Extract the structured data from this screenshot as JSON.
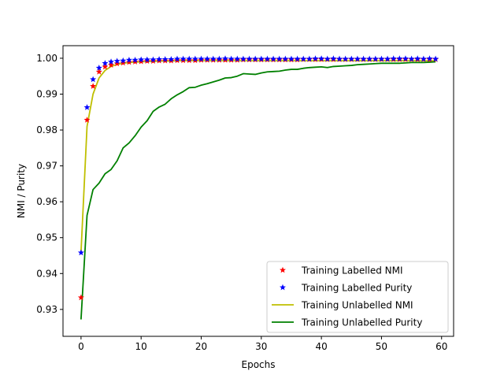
{
  "chart_data": {
    "type": "line",
    "xlabel": "Epochs",
    "ylabel": "NMI / Purity",
    "xlim": [
      -3,
      62
    ],
    "ylim": [
      0.9225,
      1.0035
    ],
    "xticks": [
      0,
      10,
      20,
      30,
      40,
      50,
      60
    ],
    "yticks": [
      0.93,
      0.94,
      0.95,
      0.96,
      0.97,
      0.98,
      0.99,
      1.0
    ],
    "ytick_labels": [
      "0.93",
      "0.94",
      "0.95",
      "0.96",
      "0.97",
      "0.98",
      "0.99",
      "1.00"
    ],
    "grid": false,
    "legend_position": "lower-right",
    "series": [
      {
        "name": "Training Labelled NMI",
        "style": "markers",
        "marker": "star",
        "color": "#ff0000",
        "x": [
          0,
          1,
          2,
          3,
          4,
          5,
          6,
          7,
          8,
          9,
          10,
          11,
          12,
          13,
          14,
          15,
          16,
          17,
          18,
          19,
          20,
          21,
          22,
          23,
          24,
          25,
          26,
          27,
          28,
          29,
          30,
          31,
          32,
          33,
          34,
          35,
          36,
          37,
          38,
          39,
          40,
          41,
          42,
          43,
          44,
          45,
          46,
          47,
          48,
          49,
          50,
          51,
          52,
          53,
          54,
          55,
          56,
          57,
          58,
          59
        ],
        "y": [
          0.9333,
          0.9828,
          0.9922,
          0.9962,
          0.9976,
          0.9981,
          0.9985,
          0.9987,
          0.9989,
          0.999,
          0.9991,
          0.9992,
          0.9992,
          0.9993,
          0.9993,
          0.9993,
          0.9994,
          0.9994,
          0.9994,
          0.9994,
          0.9995,
          0.9995,
          0.9995,
          0.9995,
          0.9995,
          0.9995,
          0.9995,
          0.9996,
          0.9996,
          0.9996,
          0.9996,
          0.9996,
          0.9996,
          0.9996,
          0.9996,
          0.9996,
          0.9996,
          0.9997,
          0.9997,
          0.9997,
          0.9997,
          0.9997,
          0.9997,
          0.9997,
          0.9997,
          0.9997,
          0.9997,
          0.9997,
          0.9997,
          0.9997,
          0.9997,
          0.9997,
          0.9997,
          0.9997,
          0.9997,
          0.9997,
          0.9997,
          0.9997,
          0.9997,
          0.9997
        ]
      },
      {
        "name": "Training Labelled Purity",
        "style": "markers",
        "marker": "star",
        "color": "#0000ff",
        "x": [
          0,
          1,
          2,
          3,
          4,
          5,
          6,
          7,
          8,
          9,
          10,
          11,
          12,
          13,
          14,
          15,
          16,
          17,
          18,
          19,
          20,
          21,
          22,
          23,
          24,
          25,
          26,
          27,
          28,
          29,
          30,
          31,
          32,
          33,
          34,
          35,
          36,
          37,
          38,
          39,
          40,
          41,
          42,
          43,
          44,
          45,
          46,
          47,
          48,
          49,
          50,
          51,
          52,
          53,
          54,
          55,
          56,
          57,
          58,
          59
        ],
        "y": [
          0.9458,
          0.9863,
          0.9941,
          0.9973,
          0.9986,
          0.999,
          0.9992,
          0.9993,
          0.9995,
          0.9995,
          0.9996,
          0.9996,
          0.9996,
          0.9997,
          0.9997,
          0.9997,
          0.9998,
          0.9998,
          0.9998,
          0.9998,
          0.9998,
          0.9998,
          0.9998,
          0.9998,
          0.9999,
          0.9998,
          0.9998,
          0.9998,
          0.9998,
          0.9998,
          0.9998,
          0.9998,
          0.9998,
          0.9998,
          0.9998,
          0.9998,
          0.9998,
          0.9998,
          0.9998,
          0.9999,
          0.9999,
          0.9998,
          0.9999,
          0.9998,
          0.9998,
          0.9998,
          0.9998,
          0.9998,
          0.9998,
          0.9998,
          0.9998,
          0.9998,
          0.9999,
          0.9999,
          0.9999,
          0.9998,
          0.9999,
          0.9998,
          0.9999,
          0.9998
        ]
      },
      {
        "name": "Training Unlabelled NMI",
        "style": "line",
        "color": "#bfbf00",
        "x": [
          0,
          1,
          2,
          3,
          4,
          5,
          6,
          7,
          8,
          9,
          10,
          11,
          12,
          13,
          14,
          15,
          16,
          17,
          18,
          19,
          20,
          21,
          22,
          23,
          24,
          25,
          26,
          27,
          28,
          29,
          30,
          31,
          32,
          33,
          34,
          35,
          36,
          37,
          38,
          39,
          40,
          41,
          42,
          43,
          44,
          45,
          46,
          47,
          48,
          49,
          50,
          51,
          52,
          53,
          54,
          55,
          56,
          57,
          58,
          59
        ],
        "y": [
          0.946,
          0.981,
          0.99,
          0.9945,
          0.9966,
          0.9977,
          0.9983,
          0.9986,
          0.9988,
          0.9989,
          0.999,
          0.9991,
          0.9991,
          0.9992,
          0.9992,
          0.9992,
          0.9993,
          0.9993,
          0.9993,
          0.9993,
          0.9993,
          0.9993,
          0.9993,
          0.9993,
          0.9993,
          0.9993,
          0.9993,
          0.9993,
          0.9993,
          0.9993,
          0.9993,
          0.9993,
          0.9993,
          0.9993,
          0.9993,
          0.9993,
          0.9993,
          0.9993,
          0.9993,
          0.9993,
          0.9993,
          0.9993,
          0.9993,
          0.9993,
          0.9993,
          0.9993,
          0.9993,
          0.9993,
          0.9993,
          0.9993,
          0.9993,
          0.9993,
          0.9993,
          0.9993,
          0.9993,
          0.9993,
          0.9993,
          0.9993,
          0.9993,
          0.9993
        ]
      },
      {
        "name": "Training Unlabelled Purity",
        "style": "line",
        "color": "#008000",
        "x": [
          0,
          1,
          2,
          3,
          4,
          5,
          6,
          7,
          8,
          9,
          10,
          11,
          12,
          13,
          14,
          15,
          16,
          17,
          18,
          19,
          20,
          21,
          22,
          23,
          24,
          25,
          26,
          27,
          28,
          29,
          30,
          31,
          32,
          33,
          34,
          35,
          36,
          37,
          38,
          39,
          40,
          41,
          42,
          43,
          44,
          45,
          46,
          47,
          48,
          49,
          50,
          51,
          52,
          53,
          54,
          55,
          56,
          57,
          58,
          59
        ],
        "y": [
          0.9272,
          0.9562,
          0.9634,
          0.9652,
          0.9678,
          0.969,
          0.9714,
          0.975,
          0.9764,
          0.9784,
          0.9808,
          0.9826,
          0.9852,
          0.9864,
          0.9872,
          0.9887,
          0.9898,
          0.9907,
          0.9918,
          0.9919,
          0.9925,
          0.9929,
          0.9934,
          0.9939,
          0.9945,
          0.9946,
          0.995,
          0.9957,
          0.9956,
          0.9955,
          0.9959,
          0.9962,
          0.9963,
          0.9964,
          0.9967,
          0.9969,
          0.9969,
          0.9972,
          0.9974,
          0.9975,
          0.9976,
          0.9974,
          0.9977,
          0.9978,
          0.9979,
          0.998,
          0.9982,
          0.9983,
          0.9984,
          0.9985,
          0.9986,
          0.9986,
          0.9986,
          0.9986,
          0.9987,
          0.9988,
          0.9988,
          0.9988,
          0.9989,
          0.999
        ]
      }
    ]
  }
}
